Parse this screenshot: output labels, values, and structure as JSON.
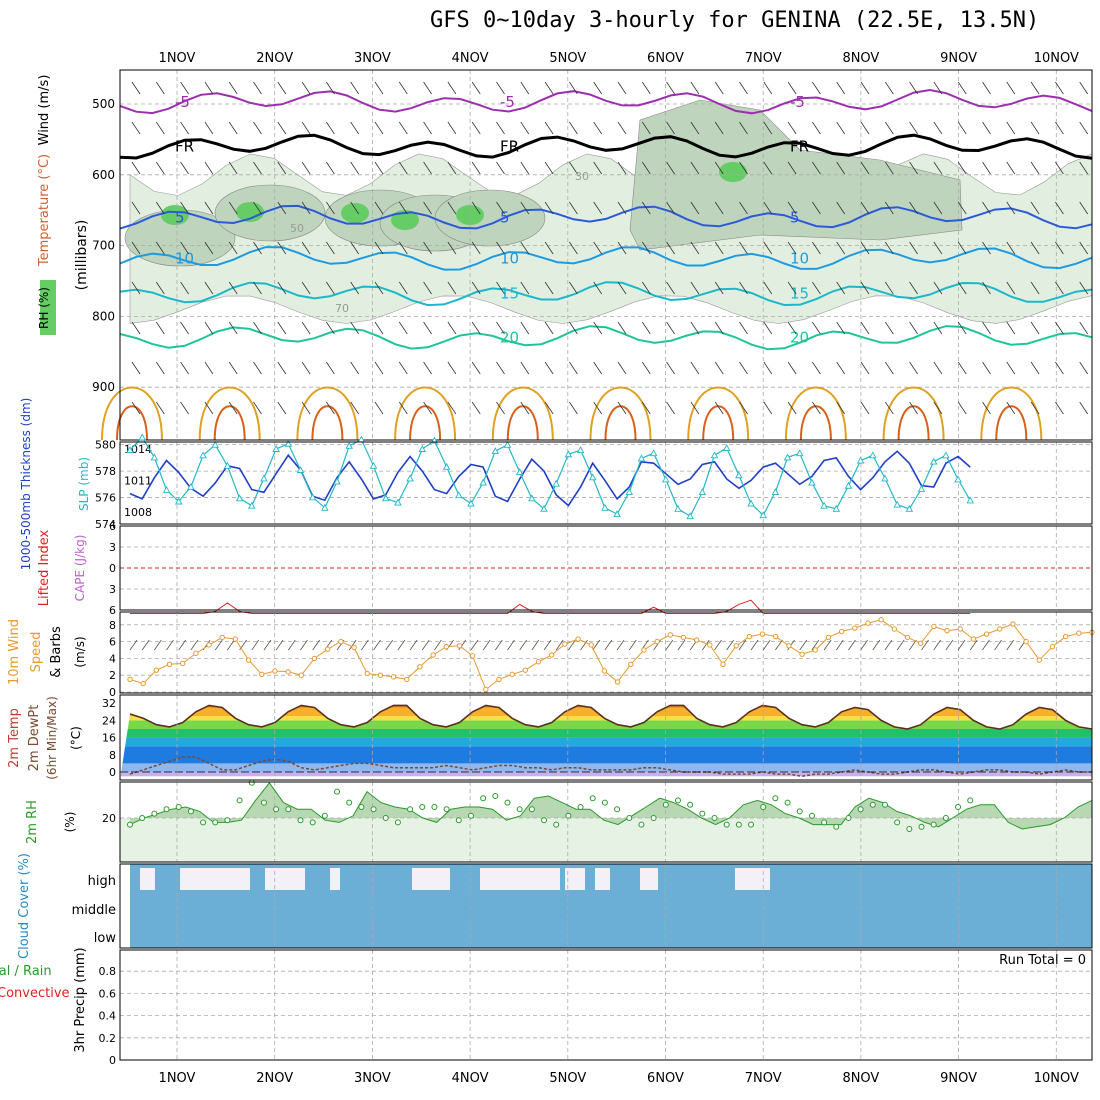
{
  "title": "GFS 0~10day 3-hourly for GENINA (22.5E, 13.5N)",
  "dates": [
    "1NOV",
    "2NOV",
    "3NOV",
    "4NOV",
    "5NOV",
    "6NOV",
    "7NOV",
    "8NOV",
    "9NOV",
    "10NOV"
  ],
  "colors": {
    "wind_temp_5neg": "#9b2fae",
    "freezing": "#000000",
    "t5": "#2a5ad8",
    "t10": "#1e9be0",
    "t15": "#1ab8c8",
    "t20": "#1ec59a",
    "t25": "#e0a020",
    "rh_light": "#e2efe0",
    "rh_mid": "#bfd4bd",
    "rh_dark": "#66cc66",
    "thickness": "#1f3fc8",
    "slp": "#22b8c8",
    "lifted": "#e02020",
    "cape": "#c060d0",
    "wind10m": "#e89a30",
    "rh2m": "#2a9a2a",
    "cloud": "#6baed6"
  },
  "chart_data": [
    {
      "type": "heatmap",
      "panel": "upper-air",
      "ylabel": "(millibars)",
      "y_axis_labels": [
        "Wind (m/s)",
        "Temperature (°C)",
        "RH (%)"
      ],
      "yticks": [
        500,
        600,
        700,
        800,
        900
      ],
      "ylim": [
        1000,
        450
      ],
      "contour_labels": {
        "temperature": [
          "-5",
          "5",
          "10",
          "15",
          "20",
          "FR"
        ],
        "rh": [
          "30",
          "50",
          "70"
        ]
      },
      "temperature_levels_mb": [
        {
          "label": "-5",
          "level": 497
        },
        {
          "label": "FR",
          "level": 560
        },
        {
          "label": "5",
          "level": 660
        },
        {
          "label": "10",
          "level": 718
        },
        {
          "label": "15",
          "level": 768
        },
        {
          "label": "20",
          "level": 830
        }
      ]
    },
    {
      "type": "line",
      "panel": "thickness-slp",
      "ylabel_left": "1000-500mb Thickness (dm)",
      "ylabel_right": "SLP (mb)",
      "left_ticks": [
        574,
        576,
        578,
        580
      ],
      "right_ticks": [
        1008,
        1011,
        1014
      ],
      "series": [
        {
          "name": "1000-500mb Thickness (dm)",
          "values": [
            576.3,
            575.9,
            577.5,
            578.8,
            577.9,
            576.7,
            576.1,
            577.1,
            578.4,
            578.2,
            576.6,
            576.4,
            577.8,
            579.2,
            578.1,
            576.1,
            575.8,
            577.5,
            578.7,
            577.4,
            575.9,
            576.2,
            577.9,
            579.1,
            578.0,
            576.6,
            576.3,
            577.6,
            578.5,
            578.3,
            576.1,
            575.7,
            577.4,
            578.9,
            578.0,
            576.2,
            575.4,
            576.8,
            578.6,
            577.3,
            575.9,
            576.8,
            578.7,
            578.6,
            577.8,
            577.0,
            577.4,
            578.5,
            578.7,
            577.4,
            576.7,
            577.3,
            578.3,
            578.6,
            577.8,
            577.0,
            577.6,
            578.8,
            579.0,
            577.6,
            576.6,
            577.5,
            578.7,
            579.5,
            578.6,
            576.9,
            576.8,
            578.6,
            579.1,
            578.3
          ]
        },
        {
          "name": "SLP (mb)",
          "values": [
            1013.9,
            1015.1,
            1013.2,
            1010.1,
            1009.0,
            1010.4,
            1013.4,
            1014.4,
            1012.4,
            1009.3,
            1008.6,
            1011.2,
            1014.0,
            1014.5,
            1012.0,
            1009.4,
            1008.4,
            1010.9,
            1014.3,
            1014.9,
            1012.4,
            1009.3,
            1008.9,
            1011.2,
            1014.0,
            1014.8,
            1012.3,
            1009.6,
            1008.8,
            1010.8,
            1013.8,
            1014.4,
            1011.8,
            1009.3,
            1008.3,
            1010.7,
            1013.5,
            1013.9,
            1011.3,
            1008.4,
            1007.8,
            1009.9,
            1013.1,
            1013.6,
            1011.1,
            1008.3,
            1007.6,
            1009.9,
            1013.4,
            1014.1,
            1011.5,
            1008.8,
            1007.7,
            1009.9,
            1013.2,
            1013.6,
            1010.8,
            1008.6,
            1008.3,
            1010.5,
            1012.9,
            1013.4,
            1011.2,
            1008.7,
            1008.3,
            1010.2,
            1012.8,
            1013.4,
            1011.1,
            1009.1
          ]
        }
      ]
    },
    {
      "type": "line",
      "panel": "lifted-cape",
      "ylabel_left": "Lifted Index",
      "ylabel_right": "CAPE (J/kg)",
      "yticks": [
        -6,
        -3,
        0,
        3,
        6
      ],
      "ylim": [
        -6,
        6
      ],
      "series": [
        {
          "name": "Lifted Index",
          "values": [
            6.5,
            6.5,
            6.5,
            6.5,
            6.5,
            6.5,
            6.5,
            6.2,
            5.0,
            6.2,
            6.5,
            6.5,
            6.5,
            6.5,
            6.5,
            6.5,
            6.5,
            6.5,
            6.5,
            6.5,
            6.5,
            6.5,
            6.5,
            6.5,
            6.5,
            6.5,
            6.5,
            6.5,
            6.5,
            6.5,
            6.5,
            6.5,
            5.2,
            6.2,
            6.5,
            6.5,
            6.5,
            6.5,
            6.5,
            6.5,
            6.5,
            6.5,
            6.5,
            5.6,
            6.5,
            6.5,
            6.5,
            6.5,
            6.5,
            6.2,
            5.2,
            4.6,
            6.5,
            6.5,
            6.5,
            6.5,
            6.5,
            6.5,
            6.5,
            6.5,
            6.5,
            6.5,
            6.5,
            6.5,
            6.5,
            6.5,
            6.5,
            6.5,
            6.5,
            6.5
          ]
        }
      ]
    },
    {
      "type": "line",
      "panel": "wind10m",
      "ylabel": "10m Wind Speed (m/s) & Barbs",
      "yticks": [
        0,
        2,
        4,
        6,
        8
      ],
      "ylim": [
        0,
        9
      ],
      "series": [
        {
          "name": "10m Wind Speed",
          "values": [
            1.5,
            1.0,
            2.6,
            3.3,
            3.4,
            4.6,
            5.6,
            6.5,
            6.3,
            3.8,
            2.1,
            2.5,
            2.4,
            2.0,
            4.0,
            5.1,
            6.0,
            5.3,
            2.2,
            2.0,
            1.8,
            1.5,
            3.0,
            4.4,
            5.4,
            5.5,
            4.3,
            0.3,
            1.5,
            2.1,
            2.6,
            3.6,
            4.4,
            5.7,
            6.3,
            5.6,
            2.5,
            1.2,
            3.3,
            5.0,
            6.0,
            6.8,
            6.5,
            6.2,
            5.6,
            3.3,
            5.5,
            6.6,
            6.9,
            6.6,
            5.5,
            4.5,
            5.0,
            6.5,
            7.2,
            7.6,
            8.2,
            8.6,
            7.5,
            6.5,
            5.8,
            7.8,
            7.3,
            7.5,
            6.3,
            6.9,
            7.5,
            8.1,
            6.0,
            3.8,
            5.4,
            6.6,
            7.0,
            7.1
          ]
        }
      ]
    },
    {
      "type": "area",
      "panel": "temp2m",
      "ylabel": "2m Temp 2m DewPt (6hr Min/Max) (°C)",
      "yticks": [
        0,
        8,
        16,
        24,
        32
      ],
      "ylim": [
        -2,
        34
      ],
      "series": [
        {
          "name": "2m Temp",
          "values": [
            27,
            25,
            22,
            21,
            23,
            28,
            31,
            30,
            25,
            22,
            21,
            23,
            28,
            31,
            30,
            25,
            22,
            21,
            23,
            28,
            31,
            31,
            25,
            22,
            21,
            23,
            28,
            31,
            30,
            25,
            22,
            21,
            23,
            28,
            31,
            30,
            25,
            22,
            21,
            23,
            28,
            31,
            31,
            25,
            22,
            21,
            23,
            28,
            31,
            30,
            25,
            22,
            21,
            23,
            28,
            30,
            29,
            24,
            21,
            20,
            22,
            27,
            30,
            29,
            24,
            21,
            20,
            22,
            27,
            30,
            29,
            24,
            21,
            20
          ]
        },
        {
          "name": "2m DewPt",
          "values": [
            -1,
            1,
            3,
            5,
            7,
            7,
            4,
            1,
            1,
            3,
            5,
            6,
            5,
            2,
            1,
            2,
            3,
            4,
            4,
            3,
            2,
            2,
            2,
            2,
            3,
            2,
            1,
            2,
            3,
            3,
            2,
            2,
            1,
            2,
            2,
            1,
            1,
            1,
            1,
            2,
            2,
            1,
            0,
            0,
            0,
            -1,
            -1,
            -1,
            0,
            -1,
            -1,
            -2,
            -1,
            -1,
            0,
            1,
            0,
            -1,
            -1,
            0,
            1,
            1,
            0,
            -1,
            0,
            1,
            1,
            0,
            0,
            -1,
            0,
            1,
            0,
            0
          ]
        }
      ]
    },
    {
      "type": "area",
      "panel": "rh2m",
      "ylabel": "2m RH (%)",
      "yticks": [
        20
      ],
      "ylim": [
        0,
        40
      ],
      "series": [
        {
          "name": "2m RH",
          "values": [
            17,
            20,
            22,
            24,
            25,
            23,
            18,
            18,
            19,
            28,
            36,
            27,
            24,
            24,
            19,
            18,
            21,
            32,
            27,
            25,
            24,
            20,
            18,
            24,
            25,
            25,
            24,
            19,
            21,
            29,
            30,
            27,
            24,
            24,
            19,
            17,
            21,
            25,
            29,
            27,
            24,
            20,
            17,
            20,
            26,
            28,
            26,
            22,
            20,
            17,
            17,
            17,
            25,
            29,
            27,
            23,
            21,
            18,
            16,
            20,
            24,
            26,
            26,
            18,
            15,
            16,
            17,
            20,
            25,
            28
          ]
        }
      ]
    },
    {
      "type": "bar",
      "panel": "cloud",
      "ylabel": "Cloud Cover (%)",
      "yticks": [
        "high",
        "middle",
        "low"
      ]
    },
    {
      "type": "bar",
      "panel": "precip",
      "ylabel": "3hr Precip (mm)",
      "series_labels": [
        "Total / Rain",
        "Convective"
      ],
      "yticks": [
        0,
        0.2,
        0.4,
        0.6,
        0.8
      ],
      "ylim": [
        0,
        0.95
      ],
      "annotation": "Run Total = 0",
      "values": []
    }
  ]
}
